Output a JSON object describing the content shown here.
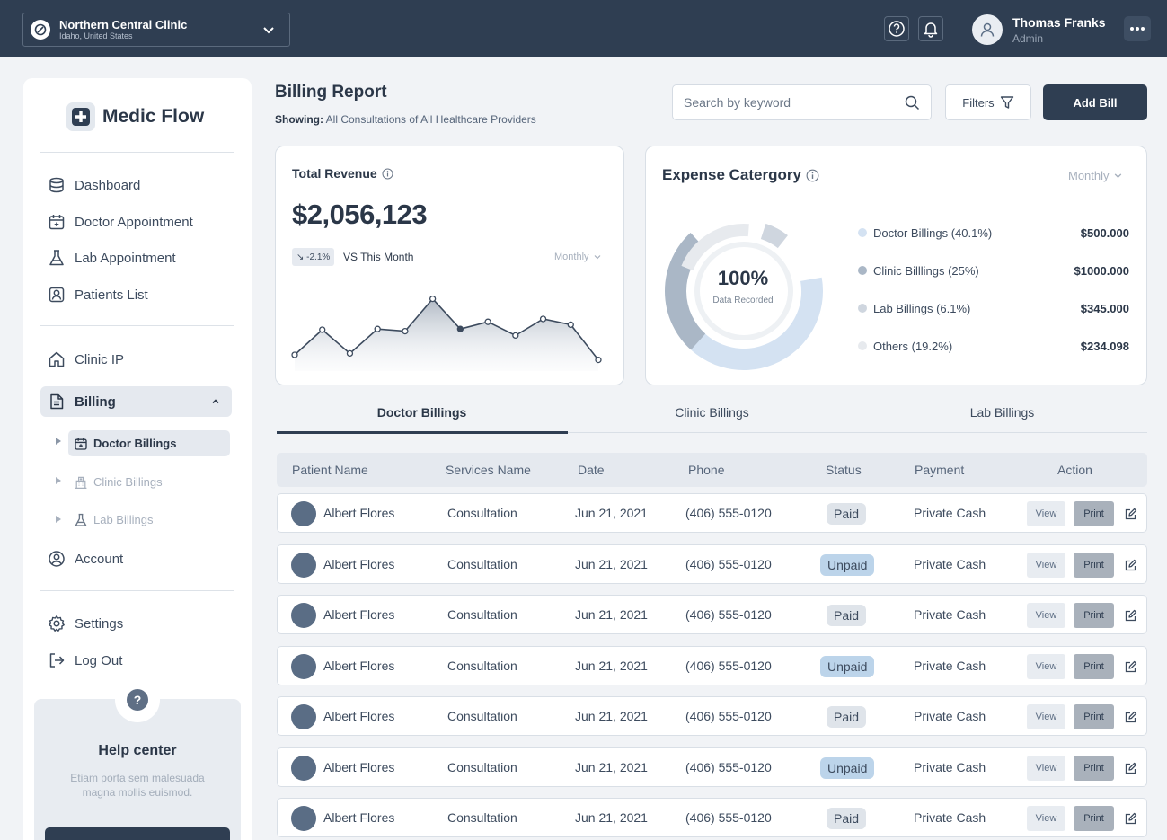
{
  "topbar": {
    "clinic_name": "Northern Central Clinic",
    "clinic_location": "Idaho, United States",
    "user_name": "Thomas Franks",
    "user_role": "Admin",
    "icons": [
      "help-circle-icon",
      "bell-icon",
      "user-icon",
      "more-horizontal-icon",
      "chevron-down-icon",
      "compass-icon"
    ]
  },
  "sidebar": {
    "brand": "Medic Flow",
    "nav": [
      {
        "label": "Dashboard",
        "icon": "database-icon"
      },
      {
        "label": "Doctor Appointment",
        "icon": "calendar-plus-icon"
      },
      {
        "label": "Lab Appointment",
        "icon": "flask-icon"
      },
      {
        "label": "Patients List",
        "icon": "user-square-icon"
      },
      {
        "label": "Clinic IP",
        "icon": "home-icon"
      },
      {
        "label": "Billing",
        "icon": "file-text-icon"
      },
      {
        "label": "Account",
        "icon": "user-circle-icon"
      },
      {
        "label": "Settings",
        "icon": "gear-icon"
      },
      {
        "label": "Log Out",
        "icon": "log-out-icon"
      }
    ],
    "billing_sub": [
      {
        "label": "Doctor Billings",
        "icon": "calendar-plus-icon"
      },
      {
        "label": "Clinic Billings",
        "icon": "hospital-icon"
      },
      {
        "label": "Lab Billings",
        "icon": "flask-icon"
      }
    ],
    "help": {
      "title": "Help center",
      "text": "Etiam porta sem malesuada magna mollis euismod."
    }
  },
  "header": {
    "title": "Billing Report",
    "showing_label": "Showing:",
    "showing_value": "All Consultations of All Healthcare Providers",
    "search_placeholder": "Search by keyword",
    "filters_label": "Filters",
    "add_bill_label": "Add Bill"
  },
  "revenue": {
    "title": "Total Revenue",
    "value": "$2,056,123",
    "change": "↘ -2.1%",
    "vs_label": "VS This Month",
    "period": "Monthly",
    "trend": [
      1.0,
      4.5,
      1.2,
      4.6,
      4.3,
      8.8,
      4.6,
      5.6,
      3.7,
      6.0,
      5.2,
      0.3
    ]
  },
  "expense": {
    "title": "Expense Catergory",
    "period": "Monthly",
    "center_value": "100%",
    "center_label": "Data Recorded",
    "items": [
      {
        "label": "Doctor Billings (40.1%)",
        "value": "$500.000",
        "color": "#d4e2f2",
        "share": 40.1
      },
      {
        "label": "Clinic Billlings (25%)",
        "value": "$1000.000",
        "color": "#aab7c6",
        "share": 25
      },
      {
        "label": "Lab Billings (6.1%)",
        "value": "$345.000",
        "color": "#cfd6df",
        "share": 6.1
      },
      {
        "label": "Others (19.2%)",
        "value": "$234.098",
        "color": "#e7eaee",
        "share": 19.2
      }
    ]
  },
  "tabs": [
    "Doctor Billings",
    "Clinic Billings",
    "Lab Billings"
  ],
  "table": {
    "headers": [
      "Patient Name",
      "Services Name",
      "Date",
      "Phone",
      "Status",
      "Payment",
      "Action"
    ],
    "view_label": "View",
    "print_label": "Print",
    "rows": [
      {
        "name": "Albert Flores",
        "service": "Consultation",
        "date": "Jun 21, 2021",
        "phone": "(406) 555-0120",
        "status": "Paid",
        "payment": "Private Cash"
      },
      {
        "name": "Albert Flores",
        "service": "Consultation",
        "date": "Jun 21, 2021",
        "phone": "(406) 555-0120",
        "status": "Unpaid",
        "payment": "Private Cash"
      },
      {
        "name": "Albert Flores",
        "service": "Consultation",
        "date": "Jun 21, 2021",
        "phone": "(406) 555-0120",
        "status": "Paid",
        "payment": "Private Cash"
      },
      {
        "name": "Albert Flores",
        "service": "Consultation",
        "date": "Jun 21, 2021",
        "phone": "(406) 555-0120",
        "status": "Unpaid",
        "payment": "Private Cash"
      },
      {
        "name": "Albert Flores",
        "service": "Consultation",
        "date": "Jun 21, 2021",
        "phone": "(406) 555-0120",
        "status": "Paid",
        "payment": "Private Cash"
      },
      {
        "name": "Albert Flores",
        "service": "Consultation",
        "date": "Jun 21, 2021",
        "phone": "(406) 555-0120",
        "status": "Unpaid",
        "payment": "Private Cash"
      },
      {
        "name": "Albert Flores",
        "service": "Consultation",
        "date": "Jun 21, 2021",
        "phone": "(406) 555-0120",
        "status": "Paid",
        "payment": "Private Cash"
      }
    ]
  }
}
